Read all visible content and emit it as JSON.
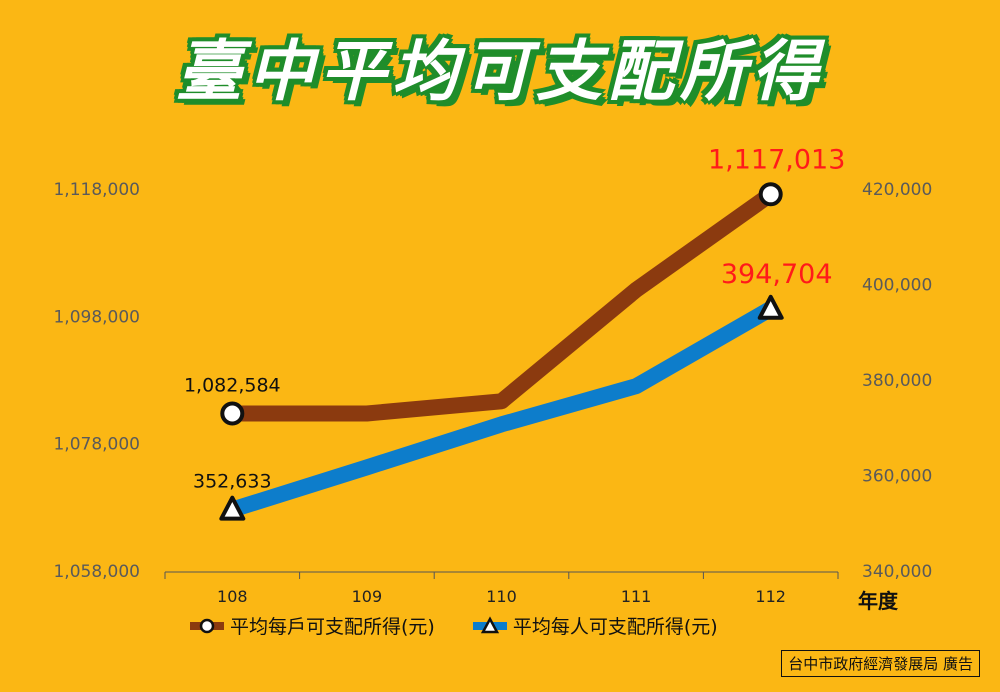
{
  "title": "臺中平均可支配所得",
  "source": "台中市政府經濟發展局 廣告",
  "colors": {
    "background": "#FBB714",
    "household": "#8B3A0F",
    "person": "#0D7DCB",
    "highlight": "#FF1A1A"
  },
  "chart_data": {
    "type": "line",
    "categories": [
      "108",
      "109",
      "110",
      "111",
      "112"
    ],
    "xlabel": "年度",
    "y_left": {
      "ylim": [
        1058000,
        1118000
      ],
      "ticks": [
        "1,058,000",
        "1,078,000",
        "1,098,000",
        "1,118,000"
      ],
      "tick_values": [
        1058000,
        1078000,
        1098000,
        1118000
      ]
    },
    "y_right": {
      "ylim": [
        340000,
        420000
      ],
      "ticks": [
        "340,000",
        "360,000",
        "380,000",
        "400,000",
        "420,000"
      ],
      "tick_values": [
        340000,
        360000,
        380000,
        400000,
        420000
      ]
    },
    "grid": false,
    "legend_position": "bottom",
    "series": [
      {
        "name": "平均每戶可支配所得(元)",
        "axis": "left",
        "marker": "circle",
        "color": "#8B3A0F",
        "values": [
          1082584,
          1082584,
          1084500,
          1102000,
          1117013
        ],
        "labels": [
          {
            "index": 0,
            "text": "1,082,584",
            "color": "black"
          },
          {
            "index": 4,
            "text": "1,117,013",
            "color": "red"
          }
        ]
      },
      {
        "name": "平均每人可支配所得(元)",
        "axis": "right",
        "marker": "triangle",
        "color": "#0D7DCB",
        "values": [
          352633,
          361500,
          370500,
          378500,
          394704
        ],
        "labels": [
          {
            "index": 0,
            "text": "352,633",
            "color": "black"
          },
          {
            "index": 4,
            "text": "394,704",
            "color": "red"
          }
        ]
      }
    ]
  }
}
